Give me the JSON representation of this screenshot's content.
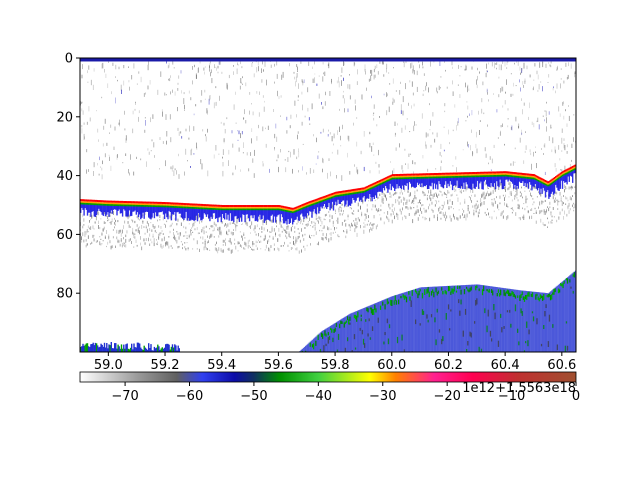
{
  "chart_data": [
    {
      "type": "heatmap",
      "title": "",
      "xlabel": "",
      "ylabel": "",
      "x_offset_label": "1e12+1.5563e18",
      "x_ticks": [
        59.0,
        59.2,
        59.4,
        59.6,
        59.8,
        60.0,
        60.2,
        60.4,
        60.6
      ],
      "x_tick_labels": [
        "59.0",
        "59.2",
        "59.4",
        "59.6",
        "59.8",
        "60.0",
        "60.2",
        "60.4",
        "60.6"
      ],
      "xlim": [
        58.9,
        60.65
      ],
      "y_ticks": [
        0,
        20,
        40,
        60,
        80
      ],
      "y_tick_labels": [
        "0",
        "20",
        "40",
        "60",
        "80"
      ],
      "ylim": [
        100,
        0
      ],
      "y_inverted": true,
      "grid": false,
      "features": {
        "top_surface_line": {
          "depth": 0.5,
          "color": "#1a1aa8"
        },
        "noise_layer": {
          "depth_range": [
            0,
            40
          ],
          "color": "#707070"
        },
        "bottom_echo_line": {
          "x": [
            58.9,
            59.0,
            59.2,
            59.4,
            59.6,
            59.65,
            59.7,
            59.8,
            59.9,
            60.0,
            60.2,
            60.4,
            60.5,
            60.55,
            60.6,
            60.65
          ],
          "depth": [
            48.5,
            49.0,
            49.5,
            50.5,
            50.5,
            51.5,
            49.5,
            46.0,
            44.5,
            40.0,
            39.5,
            39.0,
            40.0,
            42.5,
            39.0,
            36.5
          ],
          "colors": [
            "#ff0000",
            "#ffa000",
            "#00a000",
            "#0000e0"
          ]
        },
        "lower_echo": {
          "x": [
            59.67,
            59.75,
            59.85,
            60.0,
            60.1,
            60.3,
            60.45,
            60.55,
            60.65
          ],
          "depth_top": [
            100,
            93,
            87,
            81,
            78,
            77,
            79,
            80,
            72
          ],
          "colors": [
            "#0000e0",
            "#009000",
            "#00b000",
            "#404040"
          ]
        }
      }
    },
    {
      "type": "colorbar",
      "orientation": "horizontal",
      "range": [
        -77,
        0
      ],
      "ticks": [
        -70,
        -60,
        -50,
        -40,
        -30,
        -20,
        -10,
        0
      ],
      "tick_labels": [
        "−70",
        "−60",
        "−50",
        "−40",
        "−30",
        "−20",
        "−10",
        "0"
      ],
      "colormap": [
        {
          "v": -77,
          "color": "#ffffff"
        },
        {
          "v": -68,
          "color": "#9a9a9a"
        },
        {
          "v": -62,
          "color": "#606060"
        },
        {
          "v": -58,
          "color": "#3040f0"
        },
        {
          "v": -53,
          "color": "#0c0ca8"
        },
        {
          "v": -50,
          "color": "#103060"
        },
        {
          "v": -46,
          "color": "#009000"
        },
        {
          "v": -40,
          "color": "#40d040"
        },
        {
          "v": -32,
          "color": "#ffff00"
        },
        {
          "v": -28,
          "color": "#ff8000"
        },
        {
          "v": -22,
          "color": "#ff2090"
        },
        {
          "v": -16,
          "color": "#ff0050"
        },
        {
          "v": -9,
          "color": "#c03030"
        },
        {
          "v": 0,
          "color": "#a05030"
        }
      ]
    }
  ]
}
